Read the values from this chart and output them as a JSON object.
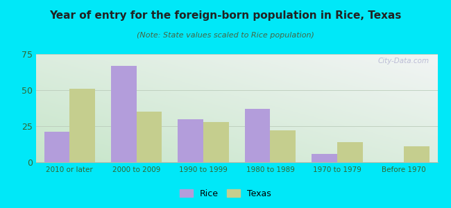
{
  "title": "Year of entry for the foreign-born population in Rice, Texas",
  "subtitle": "(Note: State values scaled to Rice population)",
  "categories": [
    "2010 or later",
    "2000 to 2009",
    "1990 to 1999",
    "1980 to 1989",
    "1970 to 1979",
    "Before 1970"
  ],
  "rice_values": [
    21,
    67,
    30,
    37,
    6,
    0
  ],
  "texas_values": [
    51,
    35,
    28,
    22,
    14,
    11
  ],
  "rice_color": "#b39ddb",
  "texas_color": "#c5ce8e",
  "background_outer": "#00e8f8",
  "ylim": [
    0,
    75
  ],
  "yticks": [
    0,
    25,
    50,
    75
  ],
  "bar_width": 0.38,
  "watermark": "City-Data.com",
  "legend_labels": [
    "Rice",
    "Texas"
  ],
  "title_color": "#222222",
  "subtitle_color": "#446644",
  "tick_color": "#336633",
  "grid_color": "#bbccbb"
}
